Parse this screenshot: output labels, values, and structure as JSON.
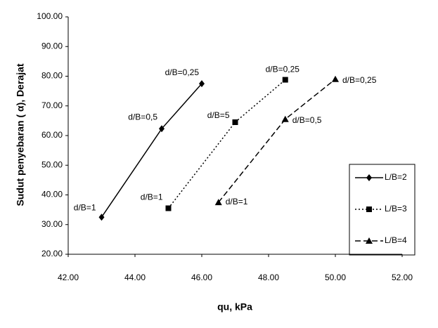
{
  "chart_data": {
    "type": "line",
    "x_label": "qu, kPa",
    "y_label": "Sudut penyebaran ( α), Derajat",
    "xlim": [
      42,
      52
    ],
    "xticks": [
      {
        "value": 42,
        "label": "42.00"
      },
      {
        "value": 44,
        "label": "44.00"
      },
      {
        "value": 46,
        "label": "46.00"
      },
      {
        "value": 48,
        "label": "48.00"
      },
      {
        "value": 50,
        "label": "50.00"
      },
      {
        "value": 52,
        "label": "52.00"
      }
    ],
    "ylim": [
      20,
      100
    ],
    "yticks": [
      {
        "value": 20,
        "label": "20.00"
      },
      {
        "value": 30,
        "label": "30.00"
      },
      {
        "value": 40,
        "label": "40.00"
      },
      {
        "value": 50,
        "label": "50.00"
      },
      {
        "value": 60,
        "label": "60.00"
      },
      {
        "value": 70,
        "label": "70.00"
      },
      {
        "value": 80,
        "label": "80.00"
      },
      {
        "value": 90,
        "label": "90.00"
      },
      {
        "value": 100,
        "label": "100.00"
      }
    ],
    "grid": false,
    "legend": "right",
    "series": [
      {
        "name": "L/B=2",
        "color": "#000000",
        "marker": "diamond",
        "dash": "solid",
        "x": [
          43,
          44.8,
          46
        ],
        "values": [
          32.5,
          62.3,
          77.5
        ],
        "point_labels": [
          "d/B=1",
          "d/B=0,5",
          "d/B=0,25"
        ]
      },
      {
        "name": "L/B=3",
        "color": "#000000",
        "marker": "square",
        "dash": "dotted",
        "x": [
          45,
          47,
          48.5
        ],
        "values": [
          35.5,
          64.5,
          78.8
        ],
        "point_labels": [
          "d/B=1",
          "d/B=5",
          "d/B=0,25"
        ]
      },
      {
        "name": "L/B=4",
        "color": "#000000",
        "marker": "triangle",
        "dash": "dashed",
        "x": [
          46.5,
          48.5,
          50
        ],
        "values": [
          37.5,
          65.5,
          79
        ],
        "point_labels": [
          "d/B=1",
          "d/B=0,5",
          "d/B=0,25"
        ]
      }
    ]
  }
}
